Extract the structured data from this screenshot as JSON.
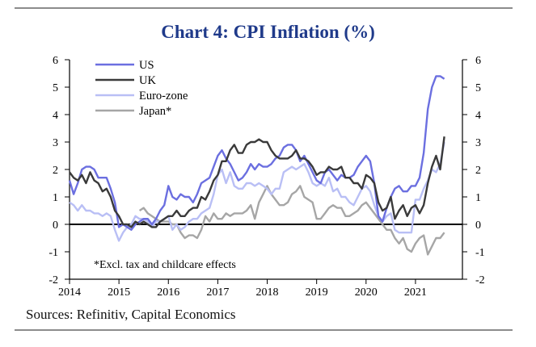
{
  "chart_data": {
    "type": "line",
    "title": "Chart 4: CPI Inflation (%)",
    "note": "*Excl. tax and childcare effects",
    "source": "Sources: Refinitiv, Capital Economics",
    "ylim": [
      -2,
      6
    ],
    "yticks": [
      -2,
      -1,
      0,
      1,
      2,
      3,
      4,
      5,
      6
    ],
    "xlim": [
      2014.0,
      2021.95
    ],
    "xticks": [
      2014,
      2015,
      2016,
      2017,
      2018,
      2019,
      2020,
      2021
    ],
    "legend_position": "top-left",
    "series": [
      {
        "name": "US",
        "color": "#6b6fe0",
        "x": [
          2014.0,
          2014.083,
          2014.167,
          2014.25,
          2014.333,
          2014.417,
          2014.5,
          2014.583,
          2014.667,
          2014.75,
          2014.833,
          2014.917,
          2015.0,
          2015.083,
          2015.167,
          2015.25,
          2015.333,
          2015.417,
          2015.5,
          2015.583,
          2015.667,
          2015.75,
          2015.833,
          2015.917,
          2016.0,
          2016.083,
          2016.167,
          2016.25,
          2016.333,
          2016.417,
          2016.5,
          2016.583,
          2016.667,
          2016.75,
          2016.833,
          2016.917,
          2017.0,
          2017.083,
          2017.167,
          2017.25,
          2017.333,
          2017.417,
          2017.5,
          2017.583,
          2017.667,
          2017.75,
          2017.833,
          2017.917,
          2018.0,
          2018.083,
          2018.167,
          2018.25,
          2018.333,
          2018.417,
          2018.5,
          2018.583,
          2018.667,
          2018.75,
          2018.833,
          2018.917,
          2019.0,
          2019.083,
          2019.167,
          2019.25,
          2019.333,
          2019.417,
          2019.5,
          2019.583,
          2019.667,
          2019.75,
          2019.833,
          2019.917,
          2020.0,
          2020.083,
          2020.167,
          2020.25,
          2020.333,
          2020.417,
          2020.5,
          2020.583,
          2020.667,
          2020.75,
          2020.833,
          2020.917,
          2021.0,
          2021.083,
          2021.167,
          2021.25,
          2021.333,
          2021.417,
          2021.5,
          2021.583
        ],
        "y": [
          1.6,
          1.1,
          1.5,
          2.0,
          2.1,
          2.1,
          2.0,
          1.7,
          1.7,
          1.7,
          1.3,
          0.8,
          -0.1,
          0.0,
          -0.1,
          -0.2,
          0.0,
          0.1,
          0.2,
          0.2,
          0.0,
          0.2,
          0.5,
          0.7,
          1.4,
          1.0,
          0.9,
          1.1,
          1.0,
          1.0,
          0.8,
          1.1,
          1.5,
          1.6,
          1.7,
          2.1,
          2.5,
          2.7,
          2.4,
          2.2,
          1.9,
          1.6,
          1.7,
          1.9,
          2.2,
          2.0,
          2.2,
          2.1,
          2.1,
          2.2,
          2.4,
          2.5,
          2.8,
          2.9,
          2.9,
          2.7,
          2.3,
          2.5,
          2.2,
          1.9,
          1.6,
          1.5,
          1.9,
          2.0,
          1.8,
          1.6,
          1.8,
          1.7,
          1.7,
          1.8,
          2.1,
          2.3,
          2.5,
          2.3,
          1.5,
          0.3,
          0.1,
          0.6,
          1.0,
          1.3,
          1.4,
          1.2,
          1.2,
          1.4,
          1.4,
          1.7,
          2.6,
          4.2,
          5.0,
          5.4,
          5.4,
          5.3
        ]
      },
      {
        "name": "UK",
        "color": "#3a3a3a",
        "x": [
          2014.0,
          2014.083,
          2014.167,
          2014.25,
          2014.333,
          2014.417,
          2014.5,
          2014.583,
          2014.667,
          2014.75,
          2014.833,
          2014.917,
          2015.0,
          2015.083,
          2015.167,
          2015.25,
          2015.333,
          2015.417,
          2015.5,
          2015.583,
          2015.667,
          2015.75,
          2015.833,
          2015.917,
          2016.0,
          2016.083,
          2016.167,
          2016.25,
          2016.333,
          2016.417,
          2016.5,
          2016.583,
          2016.667,
          2016.75,
          2016.833,
          2016.917,
          2017.0,
          2017.083,
          2017.167,
          2017.25,
          2017.333,
          2017.417,
          2017.5,
          2017.583,
          2017.667,
          2017.75,
          2017.833,
          2017.917,
          2018.0,
          2018.083,
          2018.167,
          2018.25,
          2018.333,
          2018.417,
          2018.5,
          2018.583,
          2018.667,
          2018.75,
          2018.833,
          2018.917,
          2019.0,
          2019.083,
          2019.167,
          2019.25,
          2019.333,
          2019.417,
          2019.5,
          2019.583,
          2019.667,
          2019.75,
          2019.833,
          2019.917,
          2020.0,
          2020.083,
          2020.167,
          2020.25,
          2020.333,
          2020.417,
          2020.5,
          2020.583,
          2020.667,
          2020.75,
          2020.833,
          2020.917,
          2021.0,
          2021.083,
          2021.167,
          2021.25,
          2021.333,
          2021.417,
          2021.5,
          2021.583
        ],
        "y": [
          1.9,
          1.7,
          1.6,
          1.8,
          1.5,
          1.9,
          1.6,
          1.5,
          1.2,
          1.3,
          1.0,
          0.5,
          0.3,
          0.0,
          0.0,
          -0.1,
          0.1,
          0.0,
          0.1,
          0.0,
          -0.1,
          -0.1,
          0.1,
          0.2,
          0.3,
          0.3,
          0.5,
          0.3,
          0.3,
          0.5,
          0.6,
          0.6,
          1.0,
          0.9,
          1.2,
          1.6,
          1.8,
          2.3,
          2.3,
          2.7,
          2.9,
          2.6,
          2.6,
          2.9,
          3.0,
          3.0,
          3.1,
          3.0,
          3.0,
          2.7,
          2.5,
          2.4,
          2.4,
          2.4,
          2.5,
          2.7,
          2.4,
          2.4,
          2.3,
          2.1,
          1.8,
          1.9,
          1.9,
          2.1,
          2.0,
          2.0,
          2.1,
          1.7,
          1.7,
          1.5,
          1.5,
          1.3,
          1.8,
          1.7,
          1.5,
          0.8,
          0.5,
          0.6,
          1.0,
          0.2,
          0.5,
          0.7,
          0.3,
          0.6,
          0.7,
          0.4,
          0.7,
          1.5,
          2.1,
          2.5,
          2.0,
          3.2
        ]
      },
      {
        "name": "Euro-zone",
        "color": "#b9bff5",
        "x": [
          2014.0,
          2014.083,
          2014.167,
          2014.25,
          2014.333,
          2014.417,
          2014.5,
          2014.583,
          2014.667,
          2014.75,
          2014.833,
          2014.917,
          2015.0,
          2015.083,
          2015.167,
          2015.25,
          2015.333,
          2015.417,
          2015.5,
          2015.583,
          2015.667,
          2015.75,
          2015.833,
          2015.917,
          2016.0,
          2016.083,
          2016.167,
          2016.25,
          2016.333,
          2016.417,
          2016.5,
          2016.583,
          2016.667,
          2016.75,
          2016.833,
          2016.917,
          2017.0,
          2017.083,
          2017.167,
          2017.25,
          2017.333,
          2017.417,
          2017.5,
          2017.583,
          2017.667,
          2017.75,
          2017.833,
          2017.917,
          2018.0,
          2018.083,
          2018.167,
          2018.25,
          2018.333,
          2018.417,
          2018.5,
          2018.583,
          2018.667,
          2018.75,
          2018.833,
          2018.917,
          2019.0,
          2019.083,
          2019.167,
          2019.25,
          2019.333,
          2019.417,
          2019.5,
          2019.583,
          2019.667,
          2019.75,
          2019.833,
          2019.917,
          2020.0,
          2020.083,
          2020.167,
          2020.25,
          2020.333,
          2020.417,
          2020.5,
          2020.583,
          2020.667,
          2020.75,
          2020.833,
          2020.917,
          2021.0,
          2021.083,
          2021.167,
          2021.25,
          2021.333,
          2021.417,
          2021.5,
          2021.583
        ],
        "y": [
          0.8,
          0.7,
          0.5,
          0.7,
          0.5,
          0.5,
          0.4,
          0.4,
          0.3,
          0.4,
          0.3,
          -0.2,
          -0.6,
          -0.3,
          -0.1,
          0.0,
          0.3,
          0.2,
          0.2,
          0.1,
          -0.1,
          0.1,
          0.1,
          0.2,
          0.3,
          -0.2,
          0.0,
          -0.2,
          -0.1,
          0.1,
          0.2,
          0.2,
          0.4,
          0.5,
          0.6,
          1.1,
          1.8,
          2.0,
          1.5,
          1.9,
          1.4,
          1.3,
          1.3,
          1.5,
          1.5,
          1.4,
          1.5,
          1.4,
          1.3,
          1.1,
          1.3,
          1.3,
          1.9,
          2.0,
          2.1,
          2.0,
          2.1,
          2.2,
          1.9,
          1.5,
          1.4,
          1.5,
          1.4,
          1.7,
          1.2,
          1.3,
          1.0,
          1.0,
          0.8,
          0.7,
          1.0,
          1.3,
          1.4,
          1.2,
          0.7,
          0.3,
          0.1,
          0.3,
          0.4,
          -0.2,
          -0.3,
          -0.3,
          -0.3,
          -0.3,
          0.9,
          0.9,
          1.3,
          1.6,
          2.0,
          1.9,
          2.2,
          3.0
        ]
      },
      {
        "name": "Japan*",
        "color": "#a6a6a6",
        "x": [
          2015.417,
          2015.5,
          2015.583,
          2015.667,
          2015.75,
          2015.833,
          2015.917,
          2016.0,
          2016.083,
          2016.167,
          2016.25,
          2016.333,
          2016.417,
          2016.5,
          2016.583,
          2016.667,
          2016.75,
          2016.833,
          2016.917,
          2017.0,
          2017.083,
          2017.167,
          2017.25,
          2017.333,
          2017.417,
          2017.5,
          2017.583,
          2017.667,
          2017.75,
          2017.833,
          2017.917,
          2018.0,
          2018.083,
          2018.167,
          2018.25,
          2018.333,
          2018.417,
          2018.5,
          2018.583,
          2018.667,
          2018.75,
          2018.833,
          2018.917,
          2019.0,
          2019.083,
          2019.167,
          2019.25,
          2019.333,
          2019.417,
          2019.5,
          2019.583,
          2019.667,
          2019.75,
          2019.833,
          2019.917,
          2020.0,
          2020.083,
          2020.167,
          2020.25,
          2020.333,
          2020.417,
          2020.5,
          2020.583,
          2020.667,
          2020.75,
          2020.833,
          2020.917,
          2021.0,
          2021.083,
          2021.167,
          2021.25,
          2021.333,
          2021.417,
          2021.5,
          2021.583
        ],
        "y": [
          0.5,
          0.6,
          0.4,
          0.3,
          0.2,
          0.1,
          0.1,
          0.1,
          0.0,
          0.0,
          -0.3,
          -0.5,
          -0.4,
          -0.4,
          -0.5,
          -0.2,
          0.3,
          0.1,
          0.4,
          0.2,
          0.2,
          0.4,
          0.3,
          0.4,
          0.4,
          0.4,
          0.5,
          0.7,
          0.2,
          0.8,
          1.1,
          1.4,
          1.1,
          0.9,
          0.7,
          0.7,
          0.8,
          1.1,
          1.2,
          1.4,
          1.0,
          0.9,
          0.8,
          0.2,
          0.2,
          0.4,
          0.6,
          0.7,
          0.6,
          0.6,
          0.3,
          0.3,
          0.4,
          0.5,
          0.7,
          0.8,
          0.6,
          0.4,
          0.2,
          0.0,
          -0.2,
          -0.2,
          -0.5,
          -0.7,
          -0.5,
          -0.9,
          -1.0,
          -0.7,
          -0.5,
          -0.4,
          -1.1,
          -0.8,
          -0.5,
          -0.5,
          -0.3
        ]
      }
    ]
  }
}
